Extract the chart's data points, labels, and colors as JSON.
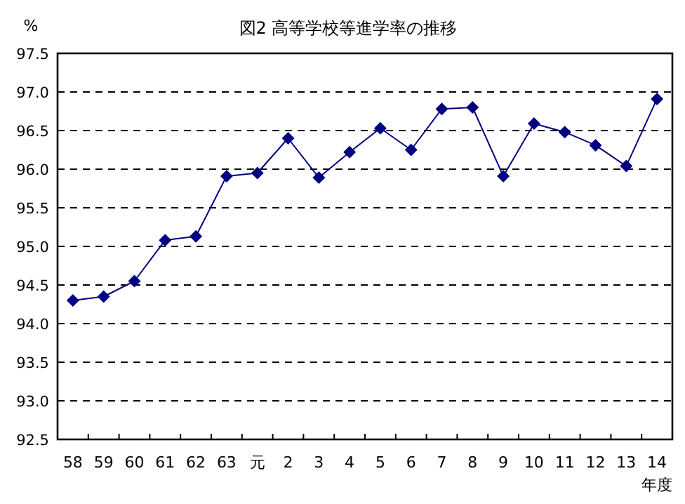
{
  "chart_data": {
    "type": "line",
    "title": "図2  高等学校等進学率の推移",
    "ylabel": "%",
    "xlabel": "年度",
    "categories": [
      "58",
      "59",
      "60",
      "61",
      "62",
      "63",
      "元",
      "2",
      "3",
      "4",
      "5",
      "6",
      "7",
      "8",
      "9",
      "10",
      "11",
      "12",
      "13",
      "14"
    ],
    "series": [
      {
        "color": "#000080",
        "values": [
          94.3,
          94.35,
          94.55,
          95.08,
          95.13,
          95.91,
          95.95,
          96.4,
          95.89,
          96.22,
          96.53,
          96.25,
          96.78,
          96.8,
          95.91,
          96.59,
          96.48,
          96.31,
          96.04,
          96.91
        ]
      }
    ],
    "ylim": [
      92.5,
      97.5
    ],
    "yticks": [
      {
        "value": 92.5,
        "label": "92.5"
      },
      {
        "value": 93,
        "label": "93.0"
      },
      {
        "value": 93.5,
        "label": "93.5"
      },
      {
        "value": 94,
        "label": "94.0"
      },
      {
        "value": 94.5,
        "label": "94.5"
      },
      {
        "value": 95,
        "label": "95.0"
      },
      {
        "value": 95.5,
        "label": "95.5"
      },
      {
        "value": 96,
        "label": "96.0"
      },
      {
        "value": 96.5,
        "label": "96.5"
      },
      {
        "value": 97,
        "label": "97.0"
      },
      {
        "value": 97.5,
        "label": "97.5"
      }
    ],
    "grid": "y",
    "marker": "diamond",
    "line_style": "solid"
  }
}
